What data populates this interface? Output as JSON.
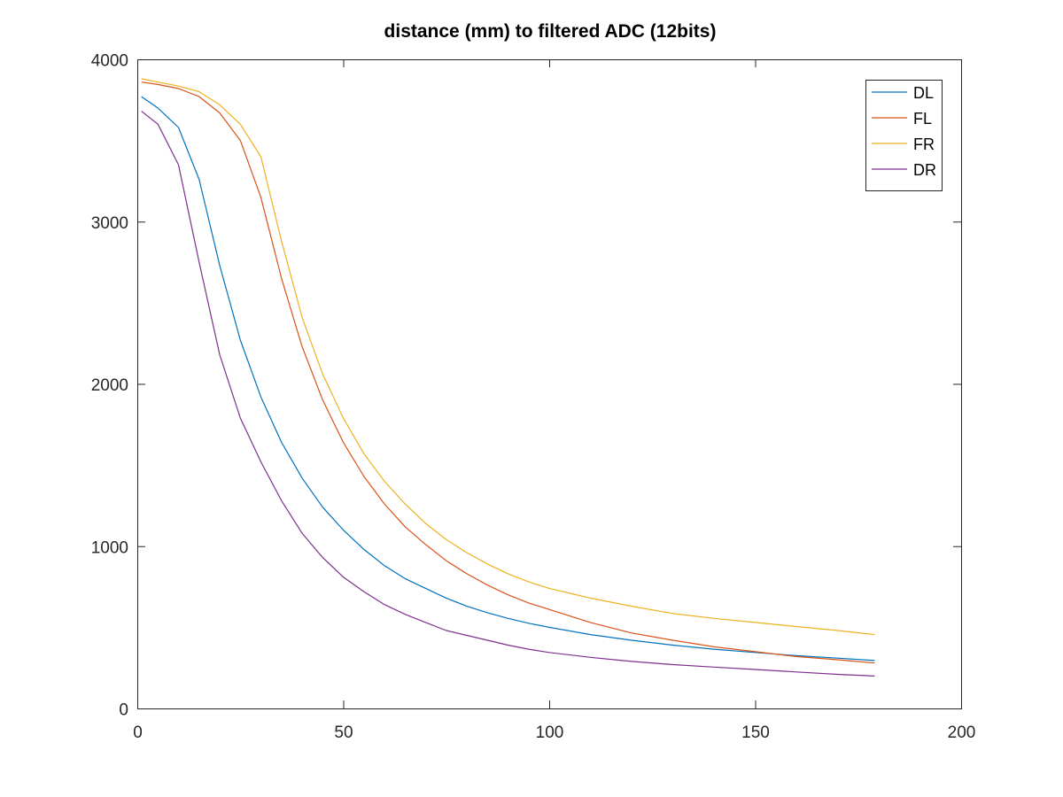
{
  "chart_data": {
    "type": "line",
    "title": "distance (mm) to filtered ADC (12bits)",
    "xlabel": "",
    "ylabel": "",
    "xlim": [
      0,
      200
    ],
    "ylim": [
      0,
      4000
    ],
    "xticks": [
      0,
      50,
      100,
      150,
      200
    ],
    "yticks": [
      0,
      1000,
      2000,
      3000,
      4000
    ],
    "grid": false,
    "legend_position": "top-right",
    "x": [
      1,
      5,
      10,
      15,
      20,
      25,
      30,
      35,
      40,
      45,
      50,
      55,
      60,
      65,
      70,
      75,
      80,
      85,
      90,
      95,
      100,
      110,
      120,
      130,
      140,
      150,
      160,
      170,
      179
    ],
    "series": [
      {
        "name": "DL",
        "color": "#0072BD",
        "values": [
          3770,
          3700,
          3580,
          3260,
          2730,
          2270,
          1920,
          1640,
          1420,
          1240,
          1100,
          980,
          880,
          800,
          740,
          680,
          630,
          590,
          555,
          525,
          500,
          455,
          420,
          390,
          365,
          345,
          325,
          310,
          295
        ]
      },
      {
        "name": "FL",
        "color": "#D95319",
        "values": [
          3860,
          3845,
          3820,
          3770,
          3670,
          3500,
          3150,
          2650,
          2230,
          1900,
          1640,
          1430,
          1260,
          1120,
          1010,
          910,
          830,
          760,
          700,
          650,
          610,
          530,
          465,
          420,
          380,
          350,
          320,
          300,
          280
        ]
      },
      {
        "name": "FR",
        "color": "#EDB120",
        "values": [
          3880,
          3860,
          3835,
          3800,
          3720,
          3600,
          3400,
          2880,
          2410,
          2060,
          1790,
          1570,
          1400,
          1260,
          1140,
          1040,
          960,
          890,
          830,
          780,
          740,
          680,
          630,
          585,
          555,
          530,
          505,
          480,
          455
        ]
      },
      {
        "name": "DR",
        "color": "#7E2F8E",
        "values": [
          3680,
          3600,
          3350,
          2750,
          2180,
          1790,
          1520,
          1280,
          1080,
          930,
          810,
          720,
          640,
          580,
          530,
          480,
          450,
          420,
          390,
          365,
          345,
          315,
          290,
          270,
          255,
          240,
          225,
          210,
          200
        ]
      }
    ]
  }
}
